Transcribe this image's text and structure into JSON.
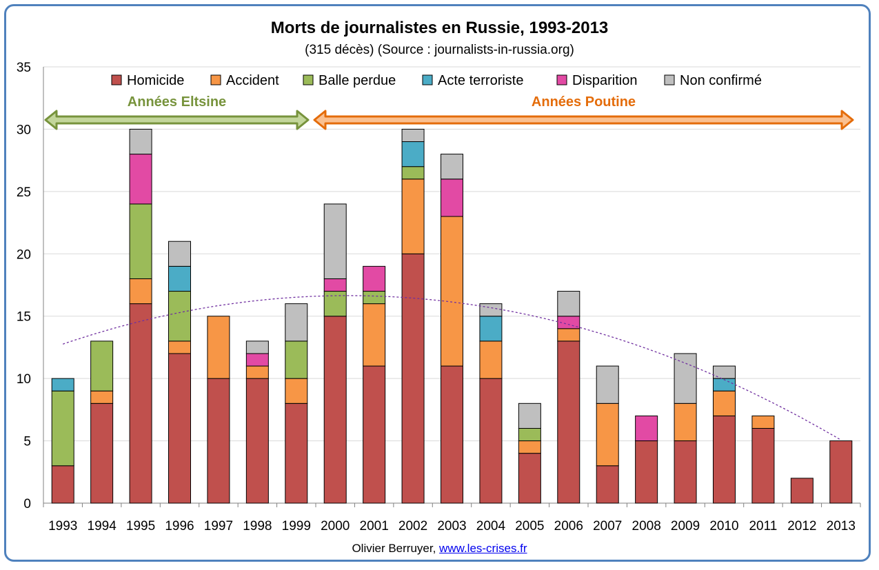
{
  "chart_data": {
    "type": "bar",
    "stacked": true,
    "title": "Morts de journalistes en Russie, 1993-2013",
    "subtitle": "(315 décès) (Source : journalists-in-russia.org)",
    "categories": [
      "1993",
      "1994",
      "1995",
      "1996",
      "1997",
      "1998",
      "1999",
      "2000",
      "2001",
      "2002",
      "2003",
      "2004",
      "2005",
      "2006",
      "2007",
      "2008",
      "2009",
      "2010",
      "2011",
      "2012",
      "2013"
    ],
    "ylim": [
      0,
      35
    ],
    "yticks": [
      "0",
      "5",
      "10",
      "15",
      "20",
      "25",
      "30",
      "35"
    ],
    "grid": true,
    "legend": "top",
    "series": [
      {
        "name": "Homicide",
        "color": "#c0504d",
        "values": [
          3,
          8,
          16,
          12,
          10,
          10,
          8,
          15,
          11,
          20,
          11,
          10,
          4,
          13,
          3,
          5,
          5,
          7,
          6,
          2,
          5
        ]
      },
      {
        "name": "Accident",
        "color": "#f79646",
        "values": [
          0,
          1,
          2,
          1,
          5,
          1,
          2,
          0,
          5,
          6,
          12,
          3,
          1,
          1,
          5,
          0,
          3,
          2,
          1,
          0,
          0
        ]
      },
      {
        "name": "Balle perdue",
        "color": "#9bbb59",
        "values": [
          6,
          4,
          6,
          4,
          0,
          0,
          3,
          2,
          1,
          1,
          0,
          0,
          1,
          0,
          0,
          0,
          0,
          0,
          0,
          0,
          0
        ]
      },
      {
        "name": "Acte terroriste",
        "color": "#4bacc6",
        "values": [
          1,
          0,
          0,
          2,
          0,
          0,
          0,
          0,
          0,
          2,
          0,
          2,
          0,
          0,
          0,
          0,
          0,
          1,
          0,
          0,
          0
        ]
      },
      {
        "name": "Disparition",
        "color": "#e24aa4",
        "values": [
          0,
          0,
          4,
          0,
          0,
          1,
          0,
          1,
          2,
          0,
          3,
          0,
          0,
          1,
          0,
          2,
          0,
          0,
          0,
          0,
          0
        ]
      },
      {
        "name": "Non confirmé",
        "color": "#bfbfbf",
        "values": [
          0,
          0,
          2,
          2,
          0,
          1,
          3,
          6,
          0,
          1,
          2,
          1,
          2,
          2,
          3,
          0,
          4,
          1,
          0,
          0,
          0
        ]
      }
    ],
    "trendline": {
      "type": "polynomial",
      "style": "dashed",
      "color": "#7030a0",
      "x": [
        "1993",
        "2013"
      ],
      "coefficients": [
        12.76,
        1.06,
        -0.07224
      ]
    },
    "annotations": [
      {
        "text": "Années Eltsine",
        "color": "#77933c",
        "from": "1993",
        "to": "1999"
      },
      {
        "text": "Années Poutine",
        "color": "#e46c0a",
        "from": "2000",
        "to": "2013"
      }
    ]
  },
  "credit": {
    "author": "Olivier Berruyer,",
    "link": "www.les-crises.fr"
  }
}
